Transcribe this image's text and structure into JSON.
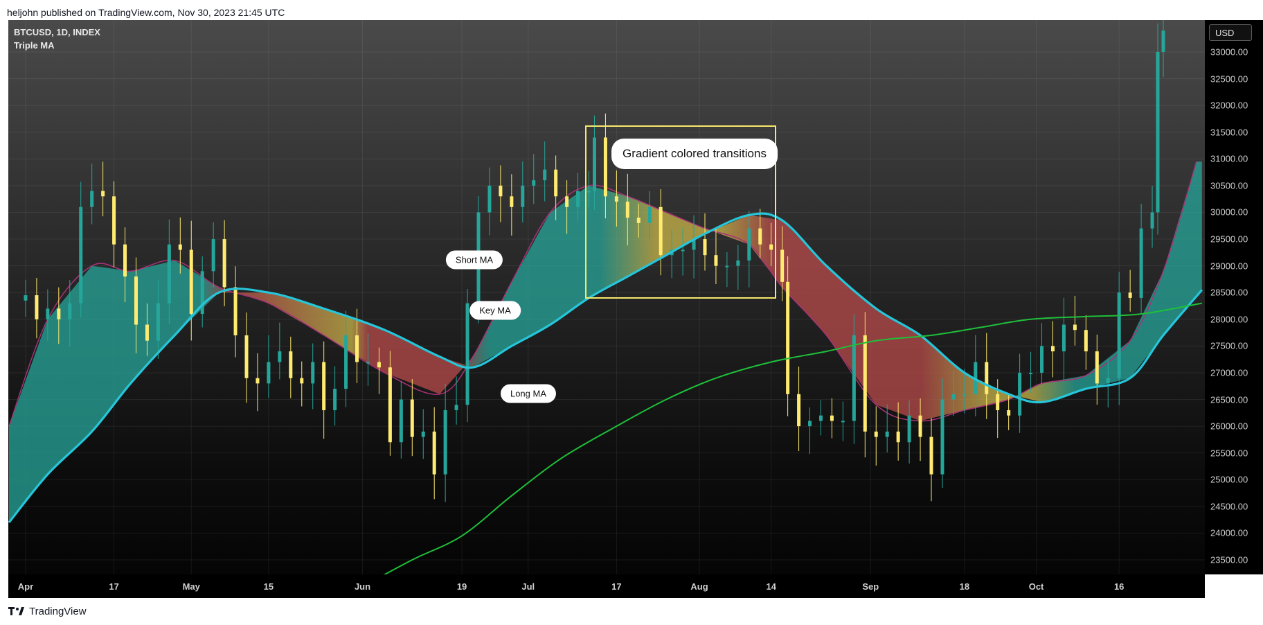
{
  "header": {
    "publisher_line": "heljohn published on TradingView.com, Nov 30, 2023 21:45 UTC"
  },
  "chart": {
    "symbol_line": "BTCUSD, 1D, INDEX",
    "indicator": "Triple MA",
    "currency": "USD"
  },
  "footer": {
    "brand": "TradingView"
  },
  "annotations": {
    "box_title": "Gradient colored transitions",
    "short_ma": "Short MA",
    "key_ma": "Key MA",
    "long_ma": "Long MA"
  },
  "colors": {
    "bull_candle": "#26a69a",
    "bear_candle": "#ffeb70",
    "key_ma": "#26c6da",
    "long_ma": "#1ec03a",
    "short_ma_edge": "#a83279",
    "fill_bull": "#26a69a",
    "fill_bear": "#b84a4a",
    "fill_transition": "#c9b64a",
    "highlight_box": "#f7e86a"
  },
  "chart_data": {
    "type": "candlestick",
    "title": "BTCUSD, 1D, INDEX",
    "y_axis": {
      "range": [
        23000,
        33400
      ],
      "ticks": [
        23500,
        24000,
        24500,
        25000,
        25500,
        26000,
        26500,
        27000,
        27500,
        28000,
        28500,
        29000,
        29500,
        30000,
        30500,
        31000,
        31500,
        32000,
        32500,
        33000
      ],
      "tick_labels": [
        "23500.00",
        "24000.00",
        "24500.00",
        "25000.00",
        "25500.00",
        "26000.00",
        "26500.00",
        "27000.00",
        "27500.00",
        "28000.00",
        "28500.00",
        "29000.00",
        "29500.00",
        "30000.00",
        "30500.00",
        "31000.00",
        "31500.00",
        "32000.00",
        "32500.00",
        "33000.00"
      ]
    },
    "x_axis": {
      "ticks": [
        {
          "label": "Apr",
          "date": "2023-04-01"
        },
        {
          "label": "17",
          "date": "2023-04-17"
        },
        {
          "label": "May",
          "date": "2023-05-01"
        },
        {
          "label": "15",
          "date": "2023-05-15"
        },
        {
          "label": "Jun",
          "date": "2023-06-01"
        },
        {
          "label": "19",
          "date": "2023-06-19"
        },
        {
          "label": "Jul",
          "date": "2023-07-01"
        },
        {
          "label": "17",
          "date": "2023-07-17"
        },
        {
          "label": "Aug",
          "date": "2023-08-01"
        },
        {
          "label": "14",
          "date": "2023-08-14"
        },
        {
          "label": "Sep",
          "date": "2023-09-01"
        },
        {
          "label": "18",
          "date": "2023-09-18"
        },
        {
          "label": "Oct",
          "date": "2023-10-01"
        },
        {
          "label": "16",
          "date": "2023-10-16"
        }
      ],
      "range": [
        "2023-03-29",
        "2023-11-01"
      ]
    },
    "grid": true,
    "close_series": [
      [
        "2023-03-29",
        28350
      ],
      [
        "2023-04-01",
        28450
      ],
      [
        "2023-04-03",
        28000
      ],
      [
        "2023-04-05",
        28200
      ],
      [
        "2023-04-07",
        28000
      ],
      [
        "2023-04-09",
        28300
      ],
      [
        "2023-04-11",
        30100
      ],
      [
        "2023-04-13",
        30400
      ],
      [
        "2023-04-15",
        30300
      ],
      [
        "2023-04-17",
        29400
      ],
      [
        "2023-04-19",
        28800
      ],
      [
        "2023-04-21",
        27900
      ],
      [
        "2023-04-23",
        27600
      ],
      [
        "2023-04-25",
        28300
      ],
      [
        "2023-04-27",
        29400
      ],
      [
        "2023-04-29",
        29300
      ],
      [
        "2023-05-01",
        28100
      ],
      [
        "2023-05-03",
        28900
      ],
      [
        "2023-05-05",
        29500
      ],
      [
        "2023-05-07",
        28600
      ],
      [
        "2023-05-09",
        27700
      ],
      [
        "2023-05-11",
        26900
      ],
      [
        "2023-05-13",
        26800
      ],
      [
        "2023-05-15",
        27200
      ],
      [
        "2023-05-17",
        27400
      ],
      [
        "2023-05-19",
        26900
      ],
      [
        "2023-05-21",
        26800
      ],
      [
        "2023-05-23",
        27200
      ],
      [
        "2023-05-25",
        26300
      ],
      [
        "2023-05-27",
        26700
      ],
      [
        "2023-05-29",
        27700
      ],
      [
        "2023-05-31",
        27200
      ],
      [
        "2023-06-02",
        27200
      ],
      [
        "2023-06-04",
        27100
      ],
      [
        "2023-06-06",
        25700
      ],
      [
        "2023-06-08",
        26500
      ],
      [
        "2023-06-10",
        25800
      ],
      [
        "2023-06-12",
        25900
      ],
      [
        "2023-06-14",
        25100
      ],
      [
        "2023-06-16",
        26300
      ],
      [
        "2023-06-18",
        26400
      ],
      [
        "2023-06-20",
        28300
      ],
      [
        "2023-06-22",
        30000
      ],
      [
        "2023-06-24",
        30500
      ],
      [
        "2023-06-26",
        30300
      ],
      [
        "2023-06-28",
        30100
      ],
      [
        "2023-06-30",
        30500
      ],
      [
        "2023-07-02",
        30600
      ],
      [
        "2023-07-04",
        30800
      ],
      [
        "2023-07-06",
        30300
      ],
      [
        "2023-07-08",
        30100
      ],
      [
        "2023-07-10",
        30400
      ],
      [
        "2023-07-12",
        30400
      ],
      [
        "2023-07-13",
        31400
      ],
      [
        "2023-07-15",
        30300
      ],
      [
        "2023-07-17",
        30200
      ],
      [
        "2023-07-19",
        29900
      ],
      [
        "2023-07-21",
        29800
      ],
      [
        "2023-07-23",
        30100
      ],
      [
        "2023-07-25",
        29200
      ],
      [
        "2023-07-27",
        29300
      ],
      [
        "2023-07-29",
        29300
      ],
      [
        "2023-07-31",
        29500
      ],
      [
        "2023-08-02",
        29200
      ],
      [
        "2023-08-04",
        29000
      ],
      [
        "2023-08-06",
        29000
      ],
      [
        "2023-08-08",
        29100
      ],
      [
        "2023-08-10",
        29700
      ],
      [
        "2023-08-12",
        29400
      ],
      [
        "2023-08-14",
        29300
      ],
      [
        "2023-08-16",
        28700
      ],
      [
        "2023-08-17",
        26600
      ],
      [
        "2023-08-19",
        26000
      ],
      [
        "2023-08-21",
        26100
      ],
      [
        "2023-08-23",
        26200
      ],
      [
        "2023-08-25",
        26100
      ],
      [
        "2023-08-27",
        26100
      ],
      [
        "2023-08-29",
        27700
      ],
      [
        "2023-08-31",
        25900
      ],
      [
        "2023-09-02",
        25800
      ],
      [
        "2023-09-04",
        25900
      ],
      [
        "2023-09-06",
        25700
      ],
      [
        "2023-09-08",
        26200
      ],
      [
        "2023-09-10",
        25800
      ],
      [
        "2023-09-12",
        25100
      ],
      [
        "2023-09-14",
        26500
      ],
      [
        "2023-09-16",
        26600
      ],
      [
        "2023-09-18",
        26600
      ],
      [
        "2023-09-20",
        27200
      ],
      [
        "2023-09-22",
        26600
      ],
      [
        "2023-09-24",
        26300
      ],
      [
        "2023-09-26",
        26200
      ],
      [
        "2023-09-28",
        27000
      ],
      [
        "2023-09-30",
        27000
      ],
      [
        "2023-10-02",
        27500
      ],
      [
        "2023-10-04",
        27400
      ],
      [
        "2023-10-06",
        27900
      ],
      [
        "2023-10-08",
        27800
      ],
      [
        "2023-10-10",
        27400
      ],
      [
        "2023-10-12",
        26800
      ],
      [
        "2023-10-14",
        26900
      ],
      [
        "2023-10-16",
        28500
      ],
      [
        "2023-10-18",
        28400
      ],
      [
        "2023-10-20",
        29700
      ],
      [
        "2023-10-22",
        30000
      ],
      [
        "2023-10-23",
        33000
      ],
      [
        "2023-10-24",
        33400
      ]
    ],
    "series": [
      {
        "name": "Short MA",
        "values": [
          [
            "2023-03-29",
            26000
          ],
          [
            "2023-04-05",
            28000
          ],
          [
            "2023-04-13",
            29000
          ],
          [
            "2023-04-20",
            28900
          ],
          [
            "2023-04-28",
            29100
          ],
          [
            "2023-05-06",
            28600
          ],
          [
            "2023-05-15",
            28300
          ],
          [
            "2023-05-25",
            27700
          ],
          [
            "2023-06-05",
            27000
          ],
          [
            "2023-06-15",
            26600
          ],
          [
            "2023-06-21",
            27300
          ],
          [
            "2023-06-28",
            28700
          ],
          [
            "2023-07-05",
            30000
          ],
          [
            "2023-07-12",
            30500
          ],
          [
            "2023-07-19",
            30300
          ],
          [
            "2023-07-26",
            30000
          ],
          [
            "2023-08-02",
            29700
          ],
          [
            "2023-08-10",
            29400
          ],
          [
            "2023-08-16",
            28600
          ],
          [
            "2023-08-24",
            27700
          ],
          [
            "2023-09-02",
            26400
          ],
          [
            "2023-09-10",
            26100
          ],
          [
            "2023-09-18",
            26300
          ],
          [
            "2023-09-26",
            26500
          ],
          [
            "2023-10-02",
            26800
          ],
          [
            "2023-10-10",
            26950
          ],
          [
            "2023-10-18",
            27600
          ],
          [
            "2023-10-24",
            28900
          ],
          [
            "2023-10-30",
            30950
          ]
        ]
      },
      {
        "name": "Key MA",
        "values": [
          [
            "2023-03-29",
            24200
          ],
          [
            "2023-04-05",
            25100
          ],
          [
            "2023-04-13",
            25900
          ],
          [
            "2023-04-20",
            26800
          ],
          [
            "2023-04-28",
            27700
          ],
          [
            "2023-05-06",
            28500
          ],
          [
            "2023-05-15",
            28500
          ],
          [
            "2023-05-25",
            28200
          ],
          [
            "2023-06-05",
            27800
          ],
          [
            "2023-06-15",
            27300
          ],
          [
            "2023-06-21",
            27100
          ],
          [
            "2023-06-28",
            27500
          ],
          [
            "2023-07-05",
            27900
          ],
          [
            "2023-07-12",
            28400
          ],
          [
            "2023-07-19",
            28800
          ],
          [
            "2023-07-26",
            29200
          ],
          [
            "2023-08-02",
            29600
          ],
          [
            "2023-08-10",
            29950
          ],
          [
            "2023-08-16",
            29850
          ],
          [
            "2023-08-24",
            29000
          ],
          [
            "2023-09-02",
            28200
          ],
          [
            "2023-09-10",
            27700
          ],
          [
            "2023-09-18",
            27000
          ],
          [
            "2023-09-26",
            26600
          ],
          [
            "2023-10-02",
            26450
          ],
          [
            "2023-10-10",
            26700
          ],
          [
            "2023-10-18",
            26900
          ],
          [
            "2023-10-24",
            27700
          ],
          [
            "2023-10-31",
            28550
          ]
        ]
      },
      {
        "name": "Long MA",
        "values": [
          [
            "2023-06-01",
            23000
          ],
          [
            "2023-06-10",
            23500
          ],
          [
            "2023-06-19",
            23950
          ],
          [
            "2023-06-28",
            24700
          ],
          [
            "2023-07-07",
            25400
          ],
          [
            "2023-07-17",
            26000
          ],
          [
            "2023-07-26",
            26500
          ],
          [
            "2023-08-04",
            26900
          ],
          [
            "2023-08-14",
            27200
          ],
          [
            "2023-08-24",
            27400
          ],
          [
            "2023-09-02",
            27600
          ],
          [
            "2023-09-12",
            27700
          ],
          [
            "2023-09-21",
            27850
          ],
          [
            "2023-09-30",
            28000
          ],
          [
            "2023-10-10",
            28050
          ],
          [
            "2023-10-20",
            28100
          ],
          [
            "2023-10-31",
            28300
          ]
        ]
      }
    ]
  }
}
